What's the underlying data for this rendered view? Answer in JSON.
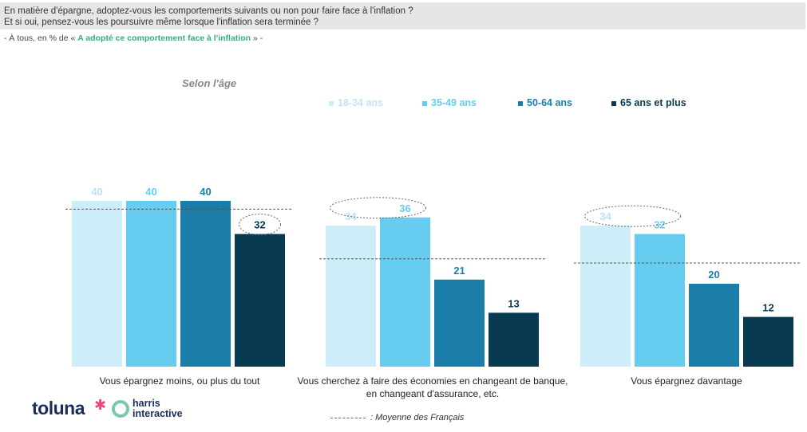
{
  "header": {
    "question_line1": "En matière d'épargne, adoptez-vous les comportements suivants ou non pour faire face à l'inflation ?",
    "question_line2": "Et si oui, pensez-vous les poursuivre même lorsque l'inflation sera terminée ?",
    "subtitle_prefix": "- À tous, en % de «",
    "subtitle_highlight": "A adopté ce comportement face à l'inflation",
    "subtitle_suffix": "» -"
  },
  "breakdown_label": "Selon l'âge",
  "legend": [
    {
      "label": "18-34 ans",
      "color": "#cdedf8"
    },
    {
      "label": "35-49 ans",
      "color": "#66cdf0"
    },
    {
      "label": "50-64 ans",
      "color": "#1b7ea8"
    },
    {
      "label": "65 ans et plus",
      "color": "#083b52"
    }
  ],
  "chart_data": {
    "type": "bar",
    "categories": [
      "Vous épargnez moins, ou plus du tout",
      "Vous cherchez à faire des économies en changeant de banque, en changeant d'assurance, etc.",
      "Vous épargnez davantage"
    ],
    "series": [
      {
        "name": "18-34 ans",
        "values": [
          40,
          34,
          34
        ]
      },
      {
        "name": "35-49 ans",
        "values": [
          40,
          36,
          32
        ]
      },
      {
        "name": "50-64 ans",
        "values": [
          40,
          21,
          20
        ]
      },
      {
        "name": "65 ans et plus",
        "values": [
          32,
          13,
          12
        ]
      }
    ],
    "average": [
      38,
      26,
      25
    ],
    "highlighted": [
      [
        3
      ],
      [
        0,
        1
      ],
      [
        0,
        1
      ]
    ],
    "average_label": ": Moyenne des Français",
    "ylim": [
      0,
      45
    ]
  },
  "logos": {
    "toluna": "toluna",
    "harris": "harris",
    "interactive": "interactive"
  }
}
